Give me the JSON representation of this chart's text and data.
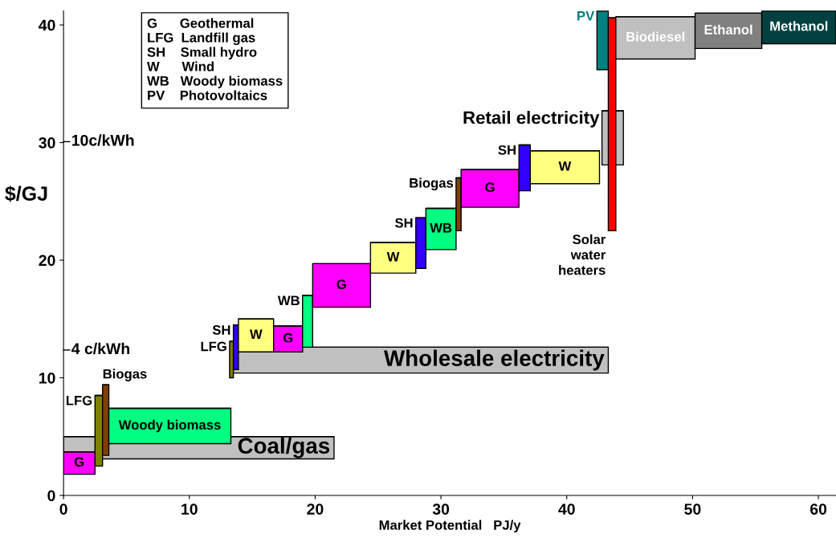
{
  "chart_data": {
    "type": "bar",
    "xlabel": "Market Potential   PJ/y",
    "ylabel": "$/GJ",
    "xlim": [
      0,
      61.4
    ],
    "ylim": [
      0,
      41.2
    ],
    "xticks": [
      0,
      10,
      20,
      30,
      40,
      50,
      60
    ],
    "yticks": [
      0,
      10,
      20,
      30,
      40
    ],
    "grid": false,
    "legend": false,
    "series": [
      {
        "name": "Coal/gas",
        "color": "#c0c0c0",
        "x": [
          10.75
        ],
        "base": [
          3.1
        ],
        "values": [
          1.9
        ],
        "xerrors": [
          [
            0,
            21.5
          ]
        ]
      },
      {
        "name": "G",
        "color": "#ff00ff",
        "x": [
          1.25
        ],
        "base": [
          1.8
        ],
        "values": [
          1.9
        ],
        "xerrors": [
          [
            0,
            2.5
          ]
        ]
      },
      {
        "name": "LFG",
        "color": "#808000",
        "x": [
          2.8
        ],
        "base": [
          2.5
        ],
        "values": [
          6.0
        ],
        "xerrors": [
          [
            2.5,
            3.1
          ]
        ]
      },
      {
        "name": "Biogas",
        "color": "#804000",
        "x": [
          3.35
        ],
        "base": [
          3.4
        ],
        "values": [
          6.0
        ],
        "xerrors": [
          [
            3.1,
            3.6
          ]
        ]
      },
      {
        "name": "Woody biomass",
        "color": "#00ff80",
        "x": [
          8.45
        ],
        "base": [
          4.4
        ],
        "values": [
          3.0
        ],
        "xerrors": [
          [
            3.6,
            13.3
          ]
        ]
      },
      {
        "name": "Wholesale electricity",
        "color": "#c0c0c0",
        "x": [
          28.3
        ],
        "base": [
          10.4
        ],
        "values": [
          2.2
        ],
        "xerrors": [
          [
            13.3,
            43.3
          ]
        ]
      },
      {
        "name": "LFG",
        "color": "#808000",
        "x": [
          13.35
        ],
        "base": [
          10.0
        ],
        "values": [
          3.1
        ],
        "xerrors": [
          [
            13.2,
            13.5
          ]
        ]
      },
      {
        "name": "SH",
        "color": "#3300ff",
        "x": [
          13.7
        ],
        "base": [
          10.7
        ],
        "values": [
          3.8
        ],
        "xerrors": [
          [
            13.5,
            13.9
          ]
        ]
      },
      {
        "name": "W",
        "color": "#ffff80",
        "x": [
          15.3
        ],
        "base": [
          12.2
        ],
        "values": [
          2.8
        ],
        "xerrors": [
          [
            13.9,
            16.7
          ]
        ]
      },
      {
        "name": "G",
        "color": "#ff00ff",
        "x": [
          17.85
        ],
        "base": [
          12.2
        ],
        "values": [
          2.2
        ],
        "xerrors": [
          [
            16.7,
            19.0
          ]
        ]
      },
      {
        "name": "WB",
        "color": "#00ff80",
        "x": [
          19.4
        ],
        "base": [
          12.6
        ],
        "values": [
          4.4
        ],
        "xerrors": [
          [
            19.0,
            19.8
          ]
        ]
      },
      {
        "name": "G",
        "color": "#ff00ff",
        "x": [
          22.1
        ],
        "base": [
          16.0
        ],
        "values": [
          3.7
        ],
        "xerrors": [
          [
            19.8,
            24.4
          ]
        ]
      },
      {
        "name": "W",
        "color": "#ffff80",
        "x": [
          26.2
        ],
        "base": [
          18.9
        ],
        "values": [
          2.6
        ],
        "xerrors": [
          [
            24.4,
            28.0
          ]
        ]
      },
      {
        "name": "SH",
        "color": "#3300ff",
        "x": [
          28.4
        ],
        "base": [
          19.3
        ],
        "values": [
          4.3
        ],
        "xerrors": [
          [
            28.0,
            28.8
          ]
        ]
      },
      {
        "name": "WB",
        "color": "#00ff80",
        "x": [
          30.0
        ],
        "base": [
          20.9
        ],
        "values": [
          3.5
        ],
        "xerrors": [
          [
            28.8,
            31.2
          ]
        ]
      },
      {
        "name": "Biogas",
        "color": "#804000",
        "x": [
          31.4
        ],
        "base": [
          22.5
        ],
        "values": [
          4.5
        ],
        "xerrors": [
          [
            31.2,
            31.6
          ]
        ]
      },
      {
        "name": "G",
        "color": "#ff00ff",
        "x": [
          33.9
        ],
        "base": [
          24.5
        ],
        "values": [
          3.2
        ],
        "xerrors": [
          [
            31.6,
            36.2
          ]
        ]
      },
      {
        "name": "SH",
        "color": "#3300ff",
        "x": [
          36.65
        ],
        "base": [
          25.9
        ],
        "values": [
          3.9
        ],
        "xerrors": [
          [
            36.2,
            37.1
          ]
        ]
      },
      {
        "name": "W",
        "color": "#ffff80",
        "x": [
          39.85
        ],
        "base": [
          26.5
        ],
        "values": [
          2.8
        ],
        "xerrors": [
          [
            37.1,
            42.6
          ]
        ]
      },
      {
        "name": "Retail electricity",
        "color": "#c0c0c0",
        "x": [
          43.65
        ],
        "base": [
          28.1
        ],
        "values": [
          4.6
        ],
        "xerrors": [
          [
            42.8,
            44.5
          ]
        ]
      },
      {
        "name": "PV",
        "color": "#008080",
        "x": [
          42.85
        ],
        "base": [
          36.2
        ],
        "values": [
          5.0
        ],
        "xerrors": [
          [
            42.4,
            43.3
          ]
        ]
      },
      {
        "name": "Solar water heaters",
        "color": "#ff0000",
        "x": [
          43.6
        ],
        "base": [
          22.5
        ],
        "values": [
          18.1
        ],
        "xerrors": [
          [
            43.3,
            43.9
          ]
        ]
      },
      {
        "name": "Biodiesel",
        "color": "#c0c0c0",
        "x": [
          47.05
        ],
        "base": [
          37.1
        ],
        "values": [
          3.6
        ],
        "xerrors": [
          [
            43.9,
            50.2
          ]
        ]
      },
      {
        "name": "Ethanol",
        "color": "#808080",
        "x": [
          52.85
        ],
        "base": [
          38.0
        ],
        "values": [
          3.0
        ],
        "xerrors": [
          [
            50.2,
            55.5
          ]
        ]
      },
      {
        "name": "Methanol",
        "color": "#004040",
        "x": [
          58.45
        ],
        "base": [
          38.4
        ],
        "values": [
          2.8
        ],
        "xerrors": [
          [
            55.5,
            61.4
          ]
        ]
      }
    ],
    "annotations": [
      "4 c/kWh",
      "10c/kWh",
      "G      Geothermal\nLFG  Landfill gas\nSH    Small hydro\nW      Wind\nWB   Woody biomass\nPV    Photovoltaics"
    ]
  }
}
